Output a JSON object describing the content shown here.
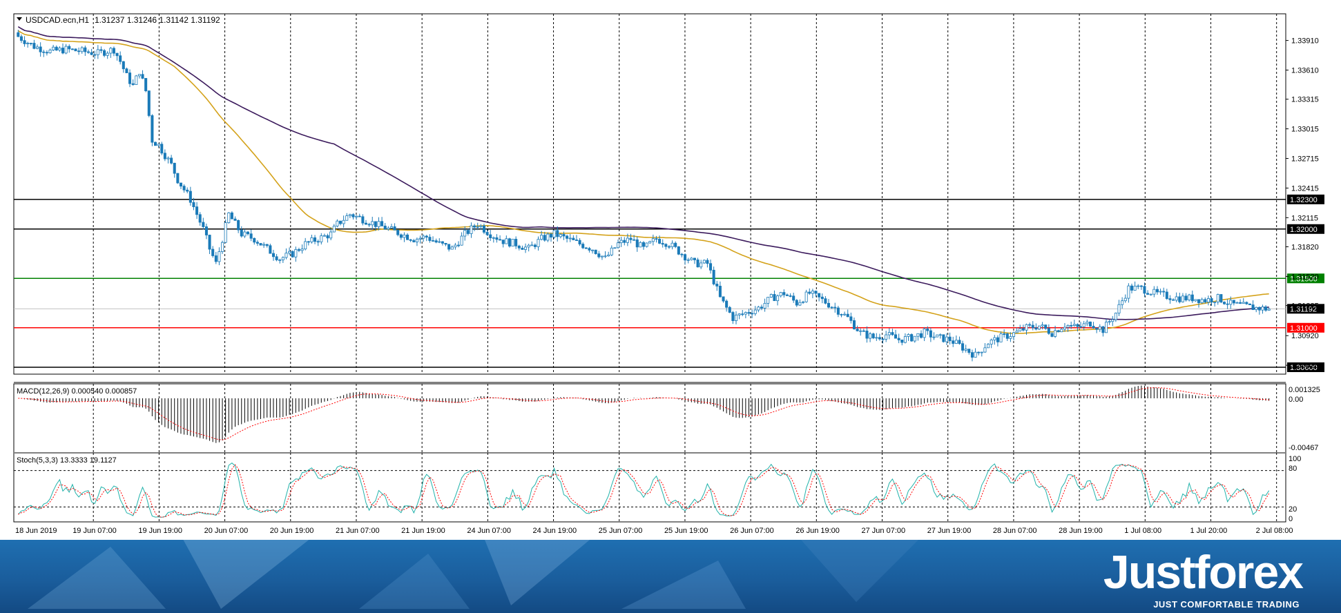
{
  "header": {
    "symbol": "USDCAD.ecn,H1",
    "ohlc": "1.31237 1.31246 1.31142 1.31192"
  },
  "price_axis": {
    "ticks": [
      "1.33910",
      "1.33610",
      "1.33315",
      "1.33015",
      "1.32715",
      "1.32415",
      "1.32115",
      "1.31820",
      "1.31520",
      "1.31225",
      "1.30920",
      "1.30620"
    ],
    "range": [
      1.3053,
      1.3418
    ]
  },
  "levels": [
    {
      "value": 1.323,
      "label": "1.32300",
      "color": "#000000",
      "tag_bg": "#000000"
    },
    {
      "value": 1.32,
      "label": "1.32000",
      "color": "#000000",
      "tag_bg": "#000000"
    },
    {
      "value": 1.315,
      "label": "1.31500",
      "color": "#008000",
      "tag_bg": "#008000"
    },
    {
      "value": 1.31,
      "label": "1.31000",
      "color": "#ff0000",
      "tag_bg": "#ff0000"
    },
    {
      "value": 1.306,
      "label": "1.30600",
      "color": "#000000",
      "tag_bg": "#000000"
    }
  ],
  "current_price": {
    "value": 1.31192,
    "label": "1.31192"
  },
  "time_axis": {
    "labels": [
      "18 Jun 2019",
      "19 Jun 07:00",
      "19 Jun 19:00",
      "20 Jun 07:00",
      "20 Jun 19:00",
      "21 Jun 07:00",
      "21 Jun 19:00",
      "24 Jun 07:00",
      "24 Jun 19:00",
      "25 Jun 07:00",
      "25 Jun 19:00",
      "26 Jun 07:00",
      "26 Jun 19:00",
      "27 Jun 07:00",
      "27 Jun 19:00",
      "28 Jun 07:00",
      "28 Jun 19:00",
      "1 Jul 08:00",
      "1 Jul 20:00",
      "2 Jul 08:00"
    ]
  },
  "macd_panel": {
    "title": "MACD(12,26,9) 0.000540 0.000857",
    "ticks": [
      "0.001325",
      "0.00",
      "-0.00467"
    ]
  },
  "stoch_panel": {
    "title": "Stoch(5,3,3) 13.3333 19.1127",
    "ticks": [
      "100",
      "80",
      "20",
      "0"
    ]
  },
  "brand": {
    "logo": "Justforex",
    "tagline": "JUST COMFORTABLE TRADING"
  },
  "colors": {
    "bull": "#ffffff",
    "bear": "#1a7ab8",
    "candle_outline": "#1a7ab8",
    "ma_fast": "#d4a21a",
    "ma_slow": "#3b1a5c",
    "macd_hist": "#000000",
    "macd_signal": "#ff0000",
    "stoch_main": "#20b2aa",
    "stoch_signal": "#ff0000"
  },
  "chart_data": {
    "type": "candlestick",
    "title": "USDCAD.ecn,H1",
    "ylim": [
      1.3053,
      1.3418
    ],
    "close_path": {
      "x": [
        0,
        5,
        10,
        15,
        20,
        25,
        30,
        32,
        34,
        36,
        38,
        40,
        42,
        44,
        46,
        48,
        50,
        52,
        54,
        56,
        58,
        60,
        62,
        66,
        70,
        74,
        78,
        82,
        86,
        90,
        94,
        98,
        100,
        104,
        108,
        112,
        116,
        120,
        124,
        128,
        132,
        136,
        140,
        144,
        148,
        152,
        156,
        160,
        164,
        168,
        172,
        176,
        180,
        184,
        188,
        192,
        196,
        200,
        204,
        208,
        212,
        216,
        220,
        224,
        228,
        232,
        236,
        240,
        244,
        248,
        252,
        256,
        260,
        264,
        268,
        272,
        276,
        280,
        284,
        288,
        292,
        296,
        300,
        304,
        308,
        312,
        316,
        320,
        324,
        328,
        332,
        336,
        340,
        344,
        348,
        352,
        356,
        360,
        364,
        368,
        372,
        376,
        380,
        384,
        388,
        392
      ],
      "close": [
        1.3395,
        1.3385,
        1.338,
        1.3382,
        1.338,
        1.3378,
        1.3382,
        1.337,
        1.3355,
        1.3345,
        1.336,
        1.334,
        1.329,
        1.3285,
        1.3275,
        1.3265,
        1.325,
        1.324,
        1.323,
        1.3215,
        1.32,
        1.318,
        1.3165,
        1.3215,
        1.3195,
        1.319,
        1.318,
        1.317,
        1.3175,
        1.3185,
        1.319,
        1.3195,
        1.3205,
        1.3215,
        1.321,
        1.3205,
        1.32,
        1.3195,
        1.319,
        1.3192,
        1.3185,
        1.318,
        1.3195,
        1.3205,
        1.3195,
        1.3188,
        1.3185,
        1.318,
        1.319,
        1.3195,
        1.319,
        1.3185,
        1.318,
        1.317,
        1.3185,
        1.319,
        1.318,
        1.319,
        1.3185,
        1.3175,
        1.3165,
        1.3165,
        1.313,
        1.311,
        1.3115,
        1.312,
        1.313,
        1.3135,
        1.3125,
        1.3135,
        1.3128,
        1.312,
        1.311,
        1.3095,
        1.309,
        1.3093,
        1.3088,
        1.309,
        1.3095,
        1.309,
        1.3088,
        1.308,
        1.3072,
        1.3085,
        1.309,
        1.3094,
        1.31,
        1.3102,
        1.3095,
        1.3103,
        1.31,
        1.3105,
        1.3098,
        1.3115,
        1.314,
        1.314,
        1.3135,
        1.3132,
        1.313,
        1.313,
        1.3128,
        1.313,
        1.3124,
        1.3122,
        1.312,
        1.3119
      ]
    }
  }
}
